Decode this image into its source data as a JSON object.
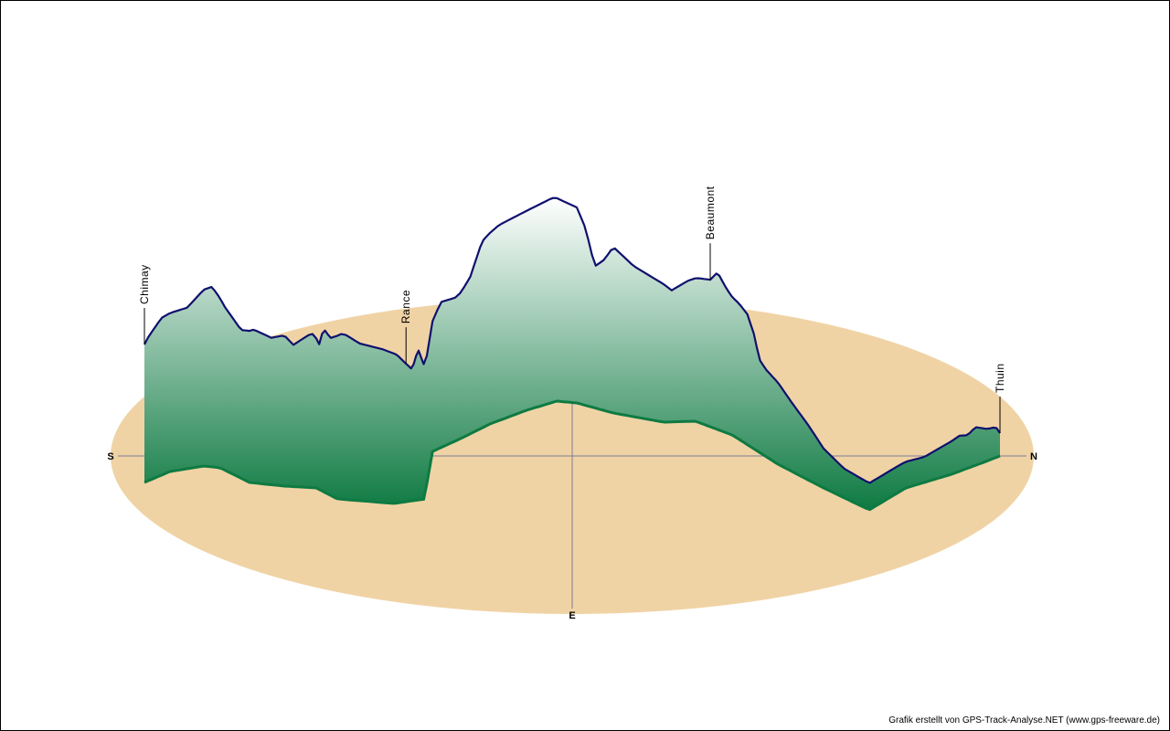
{
  "credit": "Grafik erstellt von GPS-Track-Analyse.NET (www.gps-freeware.de)",
  "compass": {
    "start": "S",
    "end": "N",
    "side": "E"
  },
  "colors": {
    "ground": "#f0d3a5",
    "axis": "#7c7c98",
    "profile_line": "#10106e",
    "wall_bottom": "#0e7a42",
    "wall_top": "#ffffff"
  },
  "chart_data": {
    "type": "area",
    "description_type": "3d-elevation-profile",
    "x_unit": "fraction-of-track",
    "xlim": [
      0,
      1
    ],
    "waypoints": [
      {
        "name": "Chimay",
        "x": 0.0
      },
      {
        "name": "Rance",
        "x": 0.3
      },
      {
        "name": "Beaumont",
        "x": 0.65
      },
      {
        "name": "Thuin",
        "x": 1.0
      }
    ],
    "elevation_profile": [
      [
        0.0,
        0.9
      ],
      [
        0.005,
        0.95
      ],
      [
        0.02,
        1.05
      ],
      [
        0.05,
        1.08
      ],
      [
        0.07,
        1.2
      ],
      [
        0.08,
        1.23
      ],
      [
        0.095,
        1.1
      ],
      [
        0.115,
        0.98
      ],
      [
        0.13,
        1.02
      ],
      [
        0.15,
        0.97
      ],
      [
        0.165,
        1.0
      ],
      [
        0.175,
        0.93
      ],
      [
        0.185,
        0.98
      ],
      [
        0.195,
        1.03
      ],
      [
        0.205,
        0.95
      ],
      [
        0.21,
        1.1
      ],
      [
        0.22,
        1.05
      ],
      [
        0.235,
        1.12
      ],
      [
        0.25,
        1.05
      ],
      [
        0.27,
        1.02
      ],
      [
        0.285,
        0.98
      ],
      [
        0.3,
        0.9
      ],
      [
        0.31,
        0.85
      ],
      [
        0.32,
        1.0
      ],
      [
        0.335,
        0.8
      ],
      [
        0.345,
        0.96
      ],
      [
        0.36,
        0.94
      ],
      [
        0.375,
        1.05
      ],
      [
        0.39,
        1.28
      ],
      [
        0.41,
        1.35
      ],
      [
        0.44,
        1.38
      ],
      [
        0.47,
        1.42
      ],
      [
        0.5,
        1.35
      ],
      [
        0.51,
        1.2
      ],
      [
        0.515,
        1.05
      ],
      [
        0.52,
        0.93
      ],
      [
        0.53,
        1.0
      ],
      [
        0.54,
        1.12
      ],
      [
        0.56,
        1.0
      ],
      [
        0.59,
        0.9
      ],
      [
        0.6,
        0.85
      ],
      [
        0.62,
        0.92
      ],
      [
        0.635,
        0.95
      ],
      [
        0.65,
        0.97
      ],
      [
        0.66,
        1.05
      ],
      [
        0.672,
        0.95
      ],
      [
        0.68,
        0.9
      ],
      [
        0.69,
        0.88
      ],
      [
        0.7,
        0.84
      ],
      [
        0.71,
        0.7
      ],
      [
        0.715,
        0.55
      ],
      [
        0.725,
        0.5
      ],
      [
        0.74,
        0.46
      ],
      [
        0.76,
        0.35
      ],
      [
        0.78,
        0.25
      ],
      [
        0.8,
        0.13
      ],
      [
        0.82,
        0.05
      ],
      [
        0.845,
        0.03
      ],
      [
        0.88,
        0.03
      ],
      [
        0.91,
        0.02
      ],
      [
        0.94,
        0.08
      ],
      [
        0.95,
        0.1
      ],
      [
        0.96,
        0.08
      ],
      [
        0.97,
        0.12
      ],
      [
        0.985,
        0.07
      ],
      [
        0.995,
        0.06
      ],
      [
        1.0,
        0.0
      ]
    ]
  }
}
